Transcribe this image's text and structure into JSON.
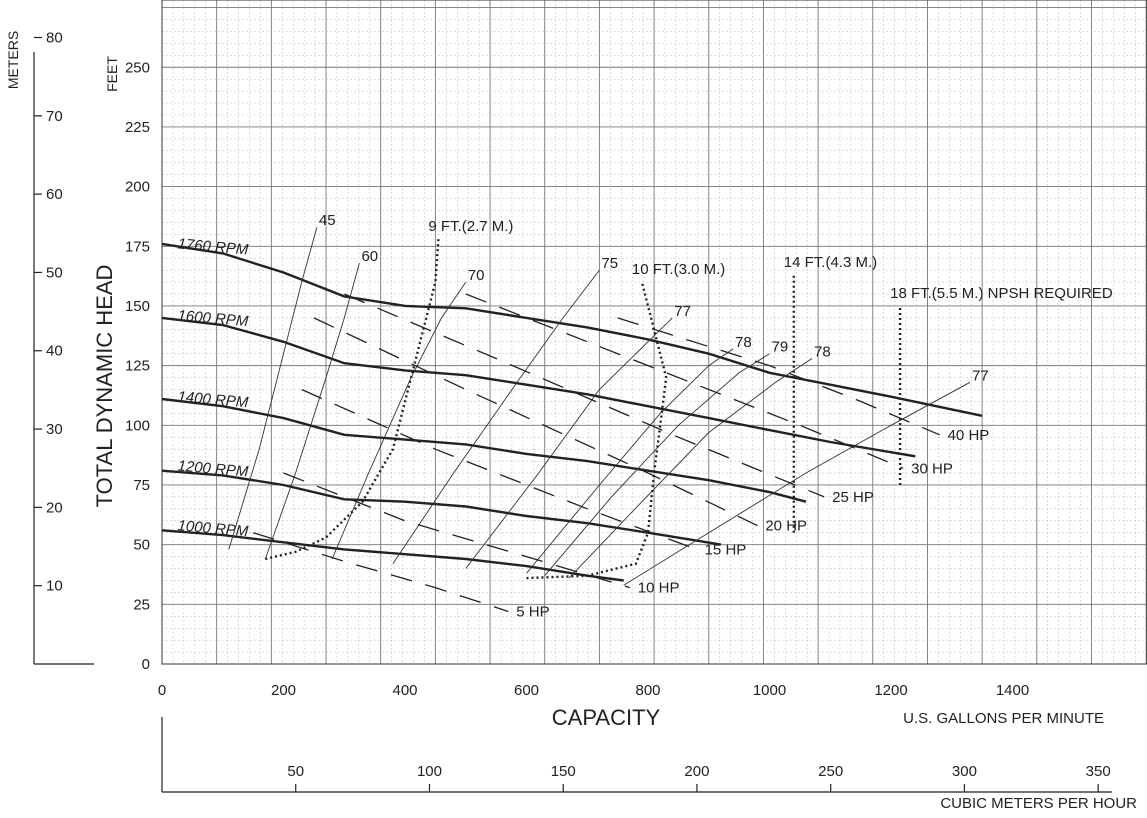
{
  "chart_data": {
    "type": "line",
    "title": "",
    "xlabel": "CAPACITY",
    "xunits": "U.S. GALLONS PER MINUTE",
    "x2units": "CUBIC METERS PER HOUR",
    "ylabel": "TOTAL DYNAMIC HEAD",
    "yunits": "FEET",
    "y2units": "METERS",
    "xlim": [
      0,
      1600
    ],
    "ylim": [
      0,
      280
    ],
    "x_ticks": [
      "0",
      "200",
      "400",
      "600",
      "800",
      "1000",
      "1200",
      "1400"
    ],
    "y_ticks": [
      "0",
      "25",
      "50",
      "75",
      "100",
      "125",
      "150",
      "175",
      "200",
      "225",
      "250"
    ],
    "m3h_ticks": [
      "50",
      "100",
      "150",
      "200",
      "250",
      "300",
      "350"
    ],
    "meter_ticks": [
      "10",
      "20",
      "30",
      "40",
      "50",
      "60",
      "70",
      "80"
    ],
    "grid": true,
    "rpm_curves": [
      {
        "label": "1760 RPM",
        "points": [
          [
            0,
            176
          ],
          [
            100,
            172
          ],
          [
            200,
            164
          ],
          [
            300,
            154
          ],
          [
            400,
            150
          ],
          [
            500,
            149
          ],
          [
            600,
            145
          ],
          [
            700,
            141
          ],
          [
            800,
            136
          ],
          [
            900,
            130
          ],
          [
            1000,
            122
          ],
          [
            1100,
            117
          ],
          [
            1200,
            112
          ],
          [
            1350,
            104
          ]
        ]
      },
      {
        "label": "1600 RPM",
        "points": [
          [
            0,
            145
          ],
          [
            100,
            142
          ],
          [
            200,
            135
          ],
          [
            300,
            126
          ],
          [
            400,
            123
          ],
          [
            500,
            121
          ],
          [
            600,
            117
          ],
          [
            700,
            113
          ],
          [
            800,
            108
          ],
          [
            900,
            103
          ],
          [
            1000,
            98
          ],
          [
            1100,
            93
          ],
          [
            1240,
            87
          ]
        ]
      },
      {
        "label": "1400 RPM",
        "points": [
          [
            0,
            111
          ],
          [
            100,
            108
          ],
          [
            200,
            103
          ],
          [
            300,
            96
          ],
          [
            400,
            94
          ],
          [
            500,
            92
          ],
          [
            600,
            88
          ],
          [
            700,
            85
          ],
          [
            800,
            81
          ],
          [
            900,
            77
          ],
          [
            1000,
            72
          ],
          [
            1060,
            68
          ]
        ]
      },
      {
        "label": "1200 RPM",
        "points": [
          [
            0,
            81
          ],
          [
            100,
            79
          ],
          [
            200,
            75
          ],
          [
            300,
            69
          ],
          [
            400,
            68
          ],
          [
            500,
            66
          ],
          [
            600,
            62
          ],
          [
            700,
            59
          ],
          [
            800,
            55
          ],
          [
            920,
            50
          ]
        ]
      },
      {
        "label": "1000 RPM",
        "points": [
          [
            0,
            56
          ],
          [
            100,
            54
          ],
          [
            200,
            51
          ],
          [
            300,
            48
          ],
          [
            400,
            46
          ],
          [
            500,
            44
          ],
          [
            600,
            41
          ],
          [
            700,
            37
          ],
          [
            760,
            35
          ]
        ]
      }
    ],
    "efficiency_curves": [
      {
        "label": "45",
        "points": [
          [
            110,
            48
          ],
          [
            160,
            90
          ],
          [
            200,
            130
          ],
          [
            230,
            160
          ],
          [
            255,
            183
          ]
        ]
      },
      {
        "label": "60",
        "points": [
          [
            170,
            44
          ],
          [
            220,
            80
          ],
          [
            270,
            120
          ],
          [
            300,
            145
          ],
          [
            325,
            168
          ]
        ]
      },
      {
        "label": "70",
        "points": [
          [
            280,
            44
          ],
          [
            340,
            80
          ],
          [
            410,
            120
          ],
          [
            460,
            145
          ],
          [
            500,
            160
          ]
        ]
      },
      {
        "label": "75",
        "points": [
          [
            380,
            42
          ],
          [
            480,
            80
          ],
          [
            590,
            120
          ],
          [
            660,
            145
          ],
          [
            720,
            165
          ]
        ]
      },
      {
        "label": "77",
        "points": [
          [
            500,
            40
          ],
          [
            620,
            80
          ],
          [
            720,
            115
          ],
          [
            800,
            135
          ],
          [
            840,
            145
          ]
        ]
      },
      {
        "label": "78",
        "points": [
          [
            600,
            38
          ],
          [
            720,
            75
          ],
          [
            820,
            105
          ],
          [
            900,
            125
          ],
          [
            940,
            132
          ]
        ]
      },
      {
        "label": "79",
        "points": [
          [
            630,
            37
          ],
          [
            740,
            70
          ],
          [
            850,
            100
          ],
          [
            950,
            122
          ],
          [
            1000,
            130
          ]
        ]
      },
      {
        "label": "78",
        "points": [
          [
            670,
            36
          ],
          [
            790,
            68
          ],
          [
            900,
            97
          ],
          [
            1010,
            118
          ],
          [
            1070,
            128
          ]
        ]
      },
      {
        "label": "77",
        "points": [
          [
            760,
            33
          ],
          [
            900,
            55
          ],
          [
            1060,
            80
          ],
          [
            1200,
            100
          ],
          [
            1330,
            118
          ]
        ]
      }
    ],
    "power_curves": [
      {
        "label": "5 HP",
        "points": [
          [
            150,
            55
          ],
          [
            300,
            43
          ],
          [
            450,
            32
          ],
          [
            570,
            22
          ]
        ]
      },
      {
        "label": "10 HP",
        "points": [
          [
            200,
            80
          ],
          [
            400,
            60
          ],
          [
            600,
            45
          ],
          [
            770,
            32
          ]
        ]
      },
      {
        "label": "15 HP",
        "points": [
          [
            230,
            115
          ],
          [
            450,
            90
          ],
          [
            700,
            65
          ],
          [
            880,
            48
          ]
        ]
      },
      {
        "label": "20 HP",
        "points": [
          [
            250,
            145
          ],
          [
            500,
            115
          ],
          [
            800,
            80
          ],
          [
            980,
            58
          ]
        ]
      },
      {
        "label": "25 HP",
        "points": [
          [
            300,
            155
          ],
          [
            550,
            128
          ],
          [
            850,
            95
          ],
          [
            1090,
            70
          ]
        ]
      },
      {
        "label": "30 HP",
        "points": [
          [
            500,
            155
          ],
          [
            800,
            125
          ],
          [
            1050,
            100
          ],
          [
            1220,
            82
          ]
        ]
      },
      {
        "label": "40 HP",
        "points": [
          [
            750,
            145
          ],
          [
            1000,
            125
          ],
          [
            1150,
            110
          ],
          [
            1280,
            96
          ]
        ]
      }
    ],
    "npsh_curves": [
      {
        "label": "9 FT.(2.7 M.)",
        "points": [
          [
            170,
            44
          ],
          [
            220,
            47
          ],
          [
            270,
            53
          ],
          [
            330,
            68
          ],
          [
            380,
            90
          ],
          [
            410,
            120
          ],
          [
            430,
            140
          ],
          [
            450,
            160
          ],
          [
            455,
            178
          ]
        ]
      },
      {
        "label": "10 FT.(3.0 M.)",
        "points": [
          [
            600,
            36
          ],
          [
            700,
            37
          ],
          [
            780,
            42
          ],
          [
            800,
            55
          ],
          [
            810,
            80
          ],
          [
            820,
            100
          ],
          [
            830,
            120
          ],
          [
            810,
            140
          ],
          [
            790,
            160
          ]
        ]
      },
      {
        "label": "14 FT.(4.3 M.)",
        "points": [
          [
            1040,
            55
          ],
          [
            1040,
            90
          ],
          [
            1040,
            120
          ],
          [
            1040,
            150
          ],
          [
            1040,
            163
          ]
        ]
      },
      {
        "label": "18 FT.(5.5 M.) NPSH REQUIRED",
        "points": [
          [
            1215,
            75
          ],
          [
            1215,
            100
          ],
          [
            1215,
            130
          ],
          [
            1215,
            150
          ]
        ]
      }
    ]
  }
}
